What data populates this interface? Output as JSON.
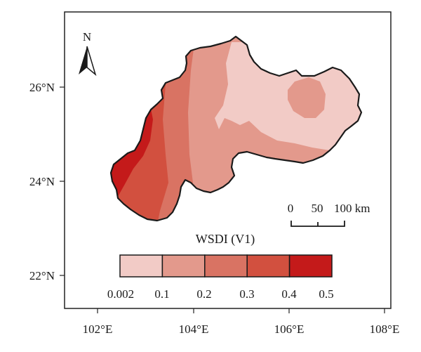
{
  "map": {
    "north_label": "N",
    "axis_x_ticks": [
      "102°E",
      "104°E",
      "106°E",
      "108°E"
    ],
    "axis_y_ticks": [
      "26°N",
      "24°N",
      "22°N"
    ],
    "scale_bar": {
      "labels": [
        "0",
        "50",
        "100 km"
      ]
    },
    "legend": {
      "title": "WSDI (V1)",
      "breaks": [
        "0.002",
        "0.1",
        "0.2",
        "0.3",
        "0.4",
        "0.5"
      ],
      "colors": [
        "#f2cbc6",
        "#e3998c",
        "#d97363",
        "#d2503f",
        "#c41a1a"
      ]
    },
    "colors": {
      "frame": "#222222",
      "boundary": "#1a1a1a",
      "class1": "#f2cbc6",
      "class2": "#e3998c",
      "class3": "#d97363",
      "class4": "#d2503f",
      "class5": "#c41a1a"
    }
  }
}
